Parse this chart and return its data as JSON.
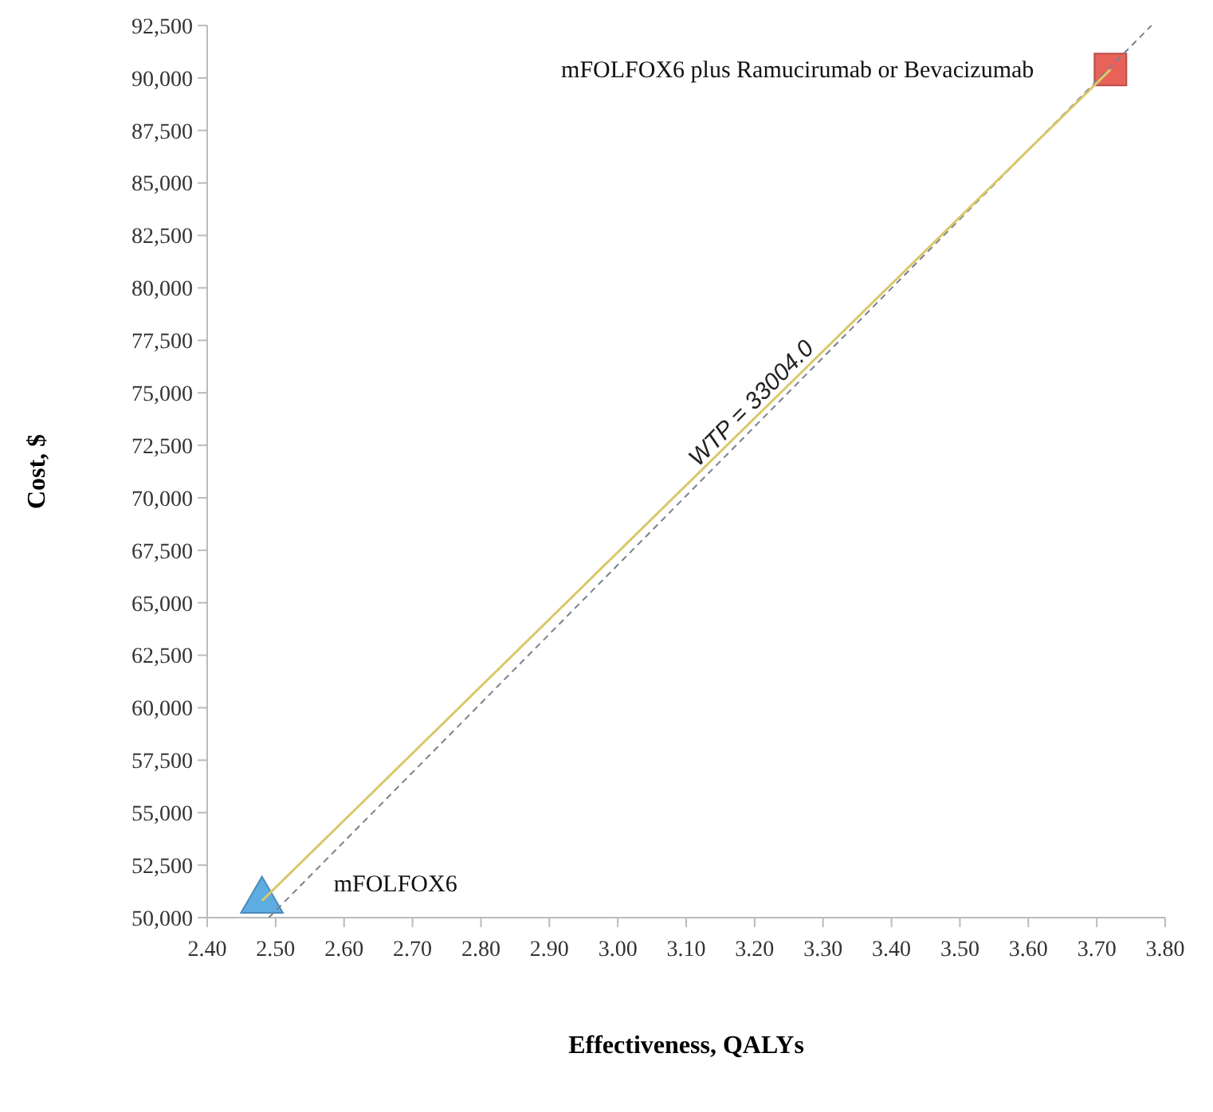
{
  "chart_data": {
    "type": "scatter",
    "xlabel": "Effectiveness, QALYs",
    "ylabel": "Cost, $",
    "xlim": [
      2.4,
      3.8
    ],
    "xticks": [
      {
        "value": 2.4,
        "label": "2.40"
      },
      {
        "value": 2.5,
        "label": "2.50"
      },
      {
        "value": 2.6,
        "label": "2.60"
      },
      {
        "value": 2.7,
        "label": "2.70"
      },
      {
        "value": 2.8,
        "label": "2.80"
      },
      {
        "value": 2.9,
        "label": "2.90"
      },
      {
        "value": 3.0,
        "label": "3.00"
      },
      {
        "value": 3.1,
        "label": "3.10"
      },
      {
        "value": 3.2,
        "label": "3.20"
      },
      {
        "value": 3.3,
        "label": "3.30"
      },
      {
        "value": 3.4,
        "label": "3.40"
      },
      {
        "value": 3.5,
        "label": "3.50"
      },
      {
        "value": 3.6,
        "label": "3.60"
      },
      {
        "value": 3.7,
        "label": "3.70"
      },
      {
        "value": 3.8,
        "label": "3.80"
      }
    ],
    "ylim": [
      50000,
      92500
    ],
    "yticks": [
      {
        "value": 50000,
        "label": "50,000"
      },
      {
        "value": 52500,
        "label": "52,500"
      },
      {
        "value": 55000,
        "label": "55,000"
      },
      {
        "value": 57500,
        "label": "57,500"
      },
      {
        "value": 60000,
        "label": "60,000"
      },
      {
        "value": 62500,
        "label": "62,500"
      },
      {
        "value": 65000,
        "label": "65,000"
      },
      {
        "value": 67500,
        "label": "67,500"
      },
      {
        "value": 70000,
        "label": "70,000"
      },
      {
        "value": 72500,
        "label": "72,500"
      },
      {
        "value": 75000,
        "label": "75,000"
      },
      {
        "value": 77500,
        "label": "77,500"
      },
      {
        "value": 80000,
        "label": "80,000"
      },
      {
        "value": 82500,
        "label": "82,500"
      },
      {
        "value": 85000,
        "label": "85,000"
      },
      {
        "value": 87500,
        "label": "87,500"
      },
      {
        "value": 90000,
        "label": "90,000"
      },
      {
        "value": 92500,
        "label": "92,500"
      }
    ],
    "grid": false,
    "series": [
      {
        "type": "line",
        "color": "#7a8090",
        "line_style": "dashed",
        "x": [
          2.49,
          3.78
        ],
        "values": [
          50000,
          92500
        ]
      },
      {
        "type": "line",
        "color": "#d9c86a",
        "line_style": "solid",
        "x": [
          2.48,
          3.72
        ],
        "values": [
          50800,
          90400
        ]
      },
      {
        "name": "mFOLFOX6",
        "color": "#5dade2",
        "marker": "triangle",
        "x": [
          2.48
        ],
        "values": [
          50800
        ]
      },
      {
        "name": "mFOLFOX6 plus Ramucirumab or Bevacizumab",
        "color": "#e8625a",
        "marker": "square",
        "x": [
          3.72
        ],
        "values": [
          90400
        ]
      }
    ],
    "annotations": [
      "WTP = 33004.0"
    ]
  }
}
